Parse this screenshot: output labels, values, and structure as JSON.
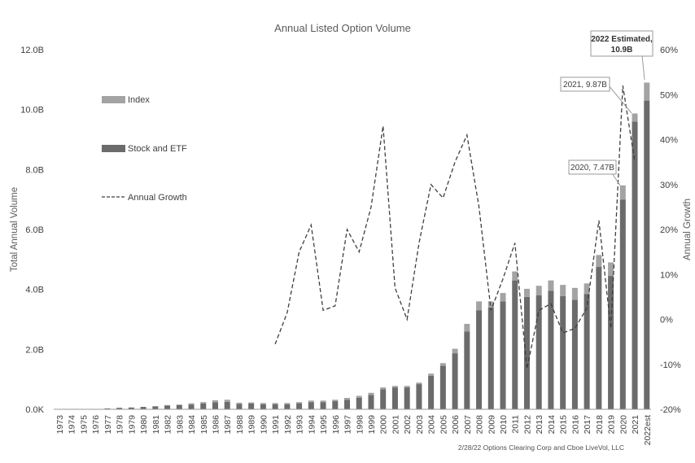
{
  "chart_data": {
    "type": "bar",
    "title": "Annual Listed Option Volume",
    "ylabel": "Total Annual Volume",
    "y2label": "Annual Growth",
    "ylim": [
      0,
      12
    ],
    "y2lim": [
      -20,
      60
    ],
    "yticks": [
      "0.0K",
      "2.0B",
      "4.0B",
      "6.0B",
      "8.0B",
      "10.0B",
      "12.0B"
    ],
    "y2ticks": [
      "-20%",
      "-10%",
      "0%",
      "10%",
      "20%",
      "30%",
      "40%",
      "50%",
      "60%"
    ],
    "categories": [
      "1973",
      "1974",
      "1975",
      "1976",
      "1977",
      "1978",
      "1979",
      "1980",
      "1981",
      "1982",
      "1983",
      "1984",
      "1985",
      "1986",
      "1987",
      "1988",
      "1989",
      "1990",
      "1991",
      "1992",
      "1993",
      "1994",
      "1995",
      "1996",
      "1997",
      "1998",
      "1999",
      "2000",
      "2001",
      "2002",
      "2003",
      "2004",
      "2005",
      "2006",
      "2007",
      "2008",
      "2009",
      "2010",
      "2011",
      "2012",
      "2013",
      "2014",
      "2015",
      "2016",
      "2017",
      "2018",
      "2019",
      "2020",
      "2021",
      "2022est"
    ],
    "series": [
      {
        "name": "Stock and ETF",
        "kind": "bar",
        "color": "#6b6b6b",
        "values": [
          0,
          0,
          0,
          0.01,
          0.03,
          0.05,
          0.06,
          0.08,
          0.1,
          0.13,
          0.14,
          0.16,
          0.19,
          0.23,
          0.25,
          0.18,
          0.19,
          0.17,
          0.17,
          0.17,
          0.2,
          0.24,
          0.24,
          0.27,
          0.32,
          0.38,
          0.48,
          0.67,
          0.73,
          0.73,
          0.84,
          1.12,
          1.45,
          1.87,
          2.6,
          3.3,
          3.4,
          3.6,
          4.3,
          3.75,
          3.8,
          3.95,
          3.78,
          3.65,
          3.85,
          4.75,
          4.45,
          7.0,
          9.6,
          10.3
        ]
      },
      {
        "name": "Index",
        "kind": "bar",
        "color": "#a3a3a3",
        "values": [
          0,
          0,
          0,
          0,
          0,
          0,
          0,
          0,
          0,
          0.01,
          0.02,
          0.04,
          0.05,
          0.07,
          0.07,
          0.04,
          0.04,
          0.04,
          0.04,
          0.04,
          0.04,
          0.05,
          0.05,
          0.05,
          0.06,
          0.07,
          0.07,
          0.06,
          0.05,
          0.05,
          0.05,
          0.07,
          0.09,
          0.15,
          0.25,
          0.3,
          0.2,
          0.28,
          0.3,
          0.27,
          0.32,
          0.35,
          0.37,
          0.4,
          0.35,
          0.4,
          0.45,
          0.47,
          0.27,
          0.6
        ]
      },
      {
        "name": "Annual Growth",
        "kind": "line",
        "color": "#3b3e45",
        "dashed": true,
        "values": [
          null,
          null,
          null,
          null,
          null,
          null,
          null,
          null,
          null,
          null,
          null,
          null,
          null,
          null,
          null,
          null,
          null,
          null,
          -5.5,
          1.5,
          15,
          21,
          2,
          3,
          20,
          15,
          25,
          43,
          7,
          0,
          17,
          30,
          27,
          35,
          41,
          25,
          2,
          9,
          17,
          -11,
          2,
          3.5,
          -3,
          -2,
          2.5,
          22,
          -2,
          52,
          35,
          null
        ]
      }
    ],
    "legend": [
      {
        "label": "Index",
        "swatch": "bar",
        "color": "#a3a3a3"
      },
      {
        "label": "Stock and ETF",
        "swatch": "bar",
        "color": "#6b6b6b"
      },
      {
        "label": "Annual Growth",
        "swatch": "dashed-line",
        "color": "#3b3e45"
      }
    ],
    "annotations": [
      {
        "text": "2020, 7.47B",
        "category": "2020",
        "value": 7.47,
        "bold": false
      },
      {
        "text": "2021, 9.87B",
        "category": "2021",
        "value": 9.87,
        "bold": false
      },
      {
        "text": "2022 Estimated,",
        "text2": "10.9B",
        "category": "2022est",
        "value": 10.9,
        "bold": true
      }
    ],
    "source": "2/28/22 Options Clearing Corp and Cboe LiveVol, LLC"
  }
}
